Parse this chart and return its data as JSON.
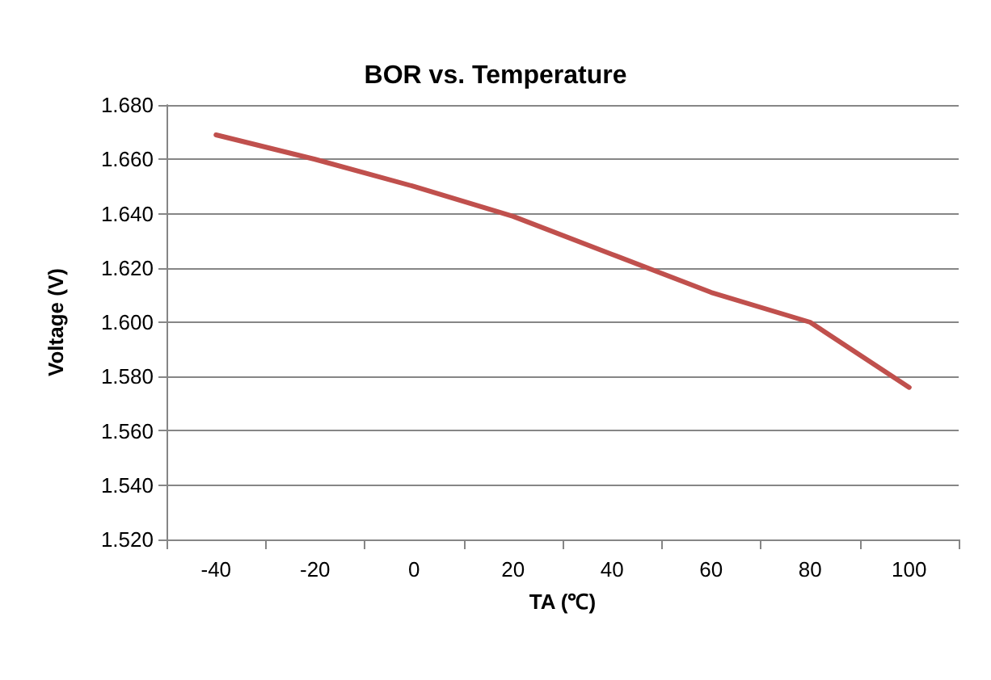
{
  "chart_data": {
    "type": "line",
    "title": "BOR vs. Temperature",
    "xlabel": "TA (℃)",
    "ylabel": "Voltage (V)",
    "categories": [
      "-40",
      "-20",
      "0",
      "20",
      "40",
      "60",
      "80",
      "100"
    ],
    "series": [
      {
        "color": "#c0504d",
        "values": [
          1.669,
          1.66,
          1.65,
          1.639,
          1.625,
          1.611,
          1.6,
          1.576
        ]
      }
    ],
    "ylim": [
      1.52,
      1.68
    ],
    "yticks": [
      {
        "value": 1.52,
        "label": "1.520"
      },
      {
        "value": 1.54,
        "label": "1.540"
      },
      {
        "value": 1.56,
        "label": "1.560"
      },
      {
        "value": 1.58,
        "label": "1.580"
      },
      {
        "value": 1.6,
        "label": "1.600"
      },
      {
        "value": 1.62,
        "label": "1.620"
      },
      {
        "value": 1.64,
        "label": "1.640"
      },
      {
        "value": 1.66,
        "label": "1.660"
      },
      {
        "value": 1.68,
        "label": "1.680"
      }
    ],
    "grid": "y",
    "marker": "none",
    "line_style": "solid"
  }
}
